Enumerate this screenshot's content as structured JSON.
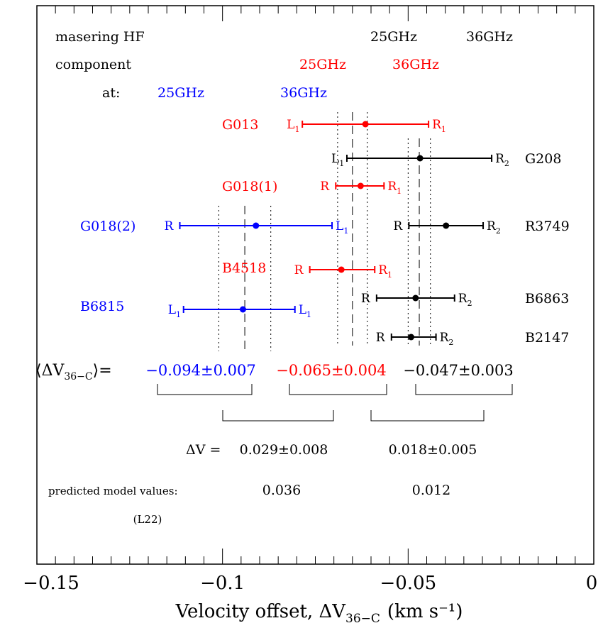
{
  "colors": {
    "red": "#ff0000",
    "blue": "#0000ff",
    "black": "#000000"
  },
  "chart_data": {
    "type": "scatter",
    "xlim": [
      -0.15,
      0
    ],
    "xticks": [
      {
        "v": -0.15,
        "label": "−0.15"
      },
      {
        "v": -0.1,
        "label": "−0.1"
      },
      {
        "v": -0.05,
        "label": "−0.05"
      },
      {
        "v": 0,
        "label": "0"
      }
    ],
    "xlabel": {
      "main": "Velocity offset, ΔV",
      "sub": "36−C",
      "unit": "(km s⁻¹)"
    },
    "header": {
      "row1_label": "masering HF",
      "row2_label": "component",
      "row3_label": "at:",
      "black_25": "25GHz",
      "black_36": "36GHz",
      "red_25": "25GHz",
      "red_36": "36GHz",
      "blue_25": "25GHz",
      "blue_36": "36GHz"
    },
    "series": [
      {
        "name": "G013",
        "color": "red",
        "x": -0.0615,
        "row": 175,
        "lo": -0.0785,
        "hi": -0.0445,
        "left": {
          "text": "L",
          "sub": "1"
        },
        "right": {
          "text": "R",
          "sub": "1"
        }
      },
      {
        "name": "G208",
        "color": "black",
        "x": -0.0468,
        "row": 223,
        "lo": -0.0665,
        "hi": -0.0275,
        "left": {
          "text": "L",
          "sub": "1"
        },
        "right": {
          "text": "R",
          "sub": "2"
        }
      },
      {
        "name": "G018(1)",
        "color": "red",
        "x": -0.0628,
        "row": 262,
        "lo": -0.0695,
        "hi": -0.0565,
        "left": {
          "text": "R",
          "sub": ""
        },
        "right": {
          "text": "R",
          "sub": "1"
        }
      },
      {
        "name": "G018(2)",
        "color": "blue",
        "x": -0.091,
        "row": 318,
        "lo": -0.1115,
        "hi": -0.0705,
        "left": {
          "text": "R",
          "sub": ""
        },
        "right": {
          "text": "L",
          "sub": "1"
        }
      },
      {
        "name": "R3749",
        "color": "black",
        "x": -0.0398,
        "row": 318,
        "lo": -0.0498,
        "hi": -0.0298,
        "left": {
          "text": "R",
          "sub": ""
        },
        "right": {
          "text": "R",
          "sub": "2"
        }
      },
      {
        "name": "B4518",
        "color": "red",
        "x": -0.068,
        "row": 380,
        "lo": -0.0765,
        "hi": -0.059,
        "left": {
          "text": "R",
          "sub": ""
        },
        "right": {
          "text": "R",
          "sub": "1"
        }
      },
      {
        "name": "B6863",
        "color": "black",
        "x": -0.048,
        "row": 420,
        "lo": -0.0585,
        "hi": -0.0375,
        "left": {
          "text": "R",
          "sub": ""
        },
        "right": {
          "text": "R",
          "sub": "2"
        }
      },
      {
        "name": "B6815",
        "color": "blue",
        "x": -0.0945,
        "row": 436,
        "lo": -0.1105,
        "hi": -0.0805,
        "left": {
          "text": "L",
          "sub": "1"
        },
        "right": {
          "text": "L",
          "sub": "1"
        }
      },
      {
        "name": "B2147",
        "color": "black",
        "x": -0.0492,
        "row": 475,
        "lo": -0.0545,
        "hi": -0.0425,
        "left": {
          "text": "R",
          "sub": ""
        },
        "right": {
          "text": "R",
          "sub": "2"
        }
      }
    ],
    "means": [
      {
        "color": "blue",
        "mean": -0.094,
        "err": 0.007,
        "text": "−0.094±0.007"
      },
      {
        "color": "red",
        "mean": -0.065,
        "err": 0.004,
        "text": "−0.065±0.004"
      },
      {
        "color": "black",
        "mean": -0.047,
        "err": 0.003,
        "text": "−0.047±0.003"
      }
    ],
    "mean_prefix": {
      "main": "⟨ΔV",
      "sub": "36−C",
      "suffix": "⟩="
    },
    "delta_label": "ΔV  =",
    "differences": [
      {
        "value": 0.029,
        "err": 0.008,
        "text": "0.029±0.008",
        "predicted": "0.036"
      },
      {
        "value": 0.018,
        "err": 0.005,
        "text": "0.018±0.005",
        "predicted": "0.012"
      }
    ],
    "predicted_label": "predicted model values:",
    "reference": "(L22)"
  }
}
